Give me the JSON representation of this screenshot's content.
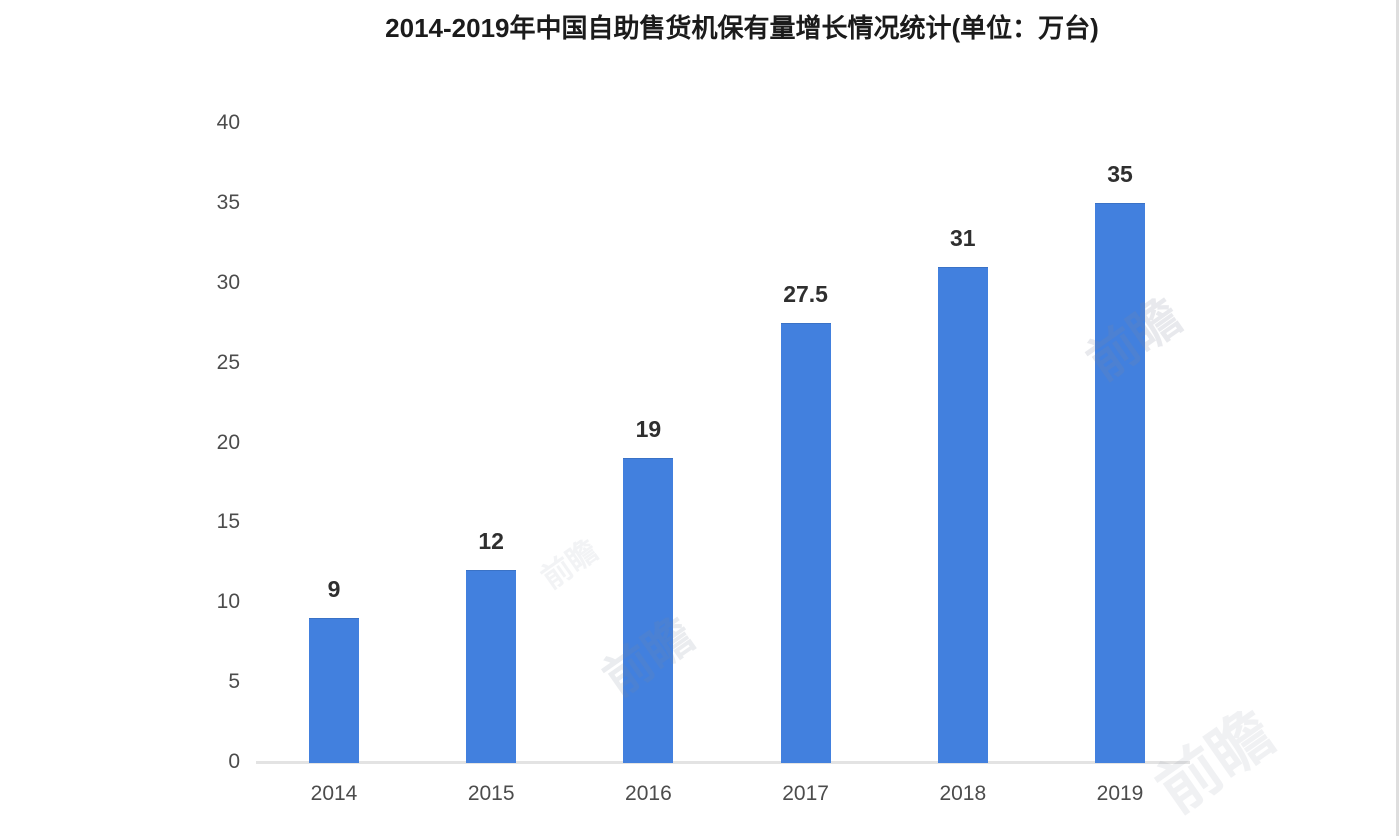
{
  "chart_data": {
    "type": "bar",
    "title": "2014-2019年中国自助售货机保有量增长情况统计(单位：万台)",
    "categories": [
      "2014",
      "2015",
      "2016",
      "2017",
      "2018",
      "2019"
    ],
    "values": [
      9,
      12,
      19,
      27.5,
      31,
      35
    ],
    "value_labels": [
      "9",
      "12",
      "19",
      "27.5",
      "31",
      "35"
    ],
    "unit": "万台",
    "xlabel": "",
    "ylabel": "",
    "ylim": [
      0,
      40
    ],
    "yticks": [
      0,
      5,
      10,
      15,
      20,
      25,
      30,
      35,
      40
    ],
    "grid": false,
    "legend_position": "none",
    "bar_color": "#4280de",
    "axis_line_color": "#e3e3e3",
    "tick_label_color": "#4c4c4c",
    "value_label_color": "#2f2f2f",
    "title_color": "#1b1b1b"
  },
  "watermark": {
    "glyph": "前瞻"
  }
}
